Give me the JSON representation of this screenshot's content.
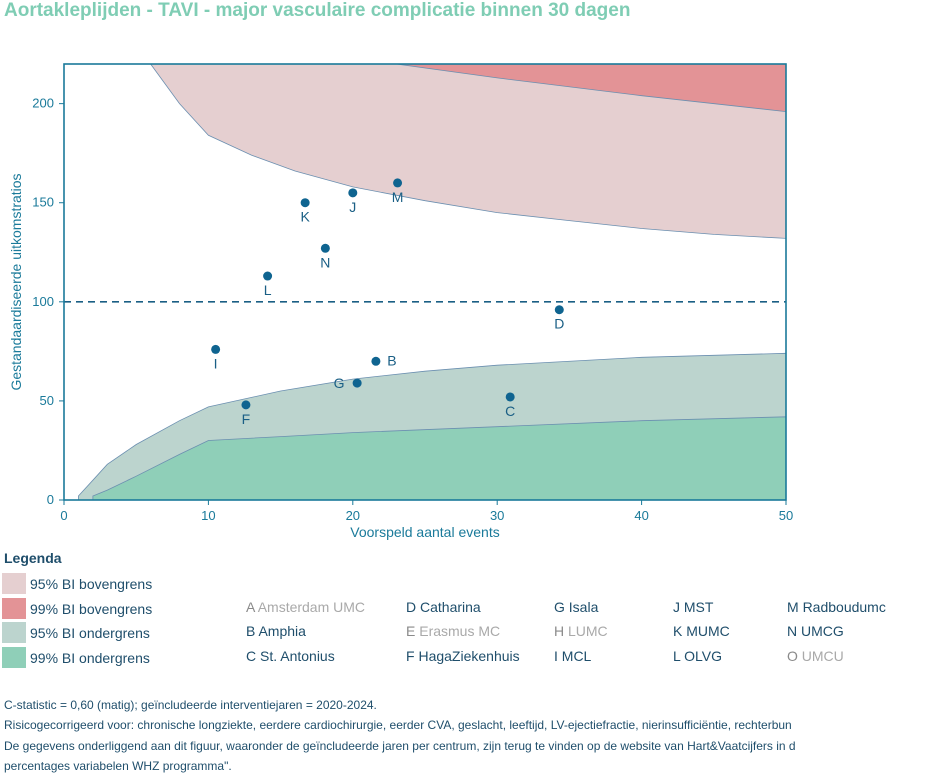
{
  "title": "Aortakleplijden - TAVI - major vasculaire complicatie binnen 30 dagen",
  "chart_data": {
    "type": "scatter",
    "title": "Aortakleplijden - TAVI - major vasculaire complicatie binnen 30 dagen",
    "xlabel": "Voorspeld aantal events",
    "ylabel": "Gestandaardiseerde uitkomstratios",
    "xlim": [
      0,
      50
    ],
    "ylim": [
      0,
      220
    ],
    "x_ticks": [
      0,
      10,
      20,
      30,
      40,
      50
    ],
    "y_ticks": [
      0,
      50,
      100,
      150,
      200
    ],
    "reference_line": 100,
    "grid": false,
    "points": [
      {
        "label": "K",
        "x": 16.7,
        "y": 150
      },
      {
        "label": "J",
        "x": 20.0,
        "y": 155
      },
      {
        "label": "M",
        "x": 23.1,
        "y": 160
      },
      {
        "label": "N",
        "x": 18.1,
        "y": 127
      },
      {
        "label": "L",
        "x": 14.1,
        "y": 113
      },
      {
        "label": "D",
        "x": 34.3,
        "y": 96
      },
      {
        "label": "I",
        "x": 10.5,
        "y": 76
      },
      {
        "label": "B",
        "x": 21.6,
        "y": 70
      },
      {
        "label": "G",
        "x": 20.3,
        "y": 59
      },
      {
        "label": "F",
        "x": 12.6,
        "y": 48
      },
      {
        "label": "C",
        "x": 30.9,
        "y": 52
      }
    ],
    "bands": {
      "upper99": [
        [
          23,
          220
        ],
        [
          30,
          213
        ],
        [
          40,
          204
        ],
        [
          50,
          196
        ]
      ],
      "upper95": [
        [
          6,
          220
        ],
        [
          8,
          200
        ],
        [
          10,
          184
        ],
        [
          13,
          174
        ],
        [
          16,
          166
        ],
        [
          20,
          158
        ],
        [
          25,
          151
        ],
        [
          30,
          145
        ],
        [
          35,
          141
        ],
        [
          40,
          137
        ],
        [
          45,
          134
        ],
        [
          50,
          132
        ]
      ],
      "lower95": [
        [
          1,
          2
        ],
        [
          2,
          10
        ],
        [
          3,
          18
        ],
        [
          5,
          28
        ],
        [
          8,
          40
        ],
        [
          10,
          47
        ],
        [
          15,
          55
        ],
        [
          20,
          61
        ],
        [
          25,
          65
        ],
        [
          30,
          68
        ],
        [
          40,
          72
        ],
        [
          50,
          74
        ]
      ],
      "lower99": [
        [
          2,
          2
        ],
        [
          3,
          5
        ],
        [
          5,
          12
        ],
        [
          8,
          23
        ],
        [
          10,
          30
        ],
        [
          15,
          32
        ],
        [
          20,
          34
        ],
        [
          30,
          37
        ],
        [
          40,
          40
        ],
        [
          50,
          42
        ]
      ]
    },
    "colors": {
      "upper95": "#e5cfd0",
      "upper99": "#e39396",
      "lower95": "#bcd4ce",
      "lower99": "#8fcfb8",
      "points": "#0f6490",
      "axis": "#1a7a9a"
    }
  },
  "legend": {
    "title": "Legenda",
    "bands": [
      {
        "label": "95% BI bovengrens",
        "color": "#e5cfd0"
      },
      {
        "label": "99% BI bovengrens",
        "color": "#e39396"
      },
      {
        "label": "95% BI ondergrens",
        "color": "#bcd4ce"
      },
      {
        "label": "99% BI ondergrens",
        "color": "#8fcfb8"
      }
    ],
    "centers": [
      {
        "code": "A",
        "name": "Amsterdam UMC",
        "excluded": true
      },
      {
        "code": "B",
        "name": "Amphia",
        "excluded": false
      },
      {
        "code": "C",
        "name": "St. Antonius",
        "excluded": false
      },
      {
        "code": "D",
        "name": "Catharina",
        "excluded": false
      },
      {
        "code": "E",
        "name": "Erasmus MC",
        "excluded": true
      },
      {
        "code": "F",
        "name": "HagaZiekenhuis",
        "excluded": false
      },
      {
        "code": "G",
        "name": "Isala",
        "excluded": false
      },
      {
        "code": "H",
        "name": "LUMC",
        "excluded": true
      },
      {
        "code": "I",
        "name": "MCL",
        "excluded": false
      },
      {
        "code": "J",
        "name": "MST",
        "excluded": false
      },
      {
        "code": "K",
        "name": "MUMC",
        "excluded": false
      },
      {
        "code": "L",
        "name": "OLVG",
        "excluded": false
      },
      {
        "code": "M",
        "name": "Radboudumc",
        "excluded": false
      },
      {
        "code": "N",
        "name": "UMCG",
        "excluded": false
      },
      {
        "code": "O",
        "name": "UMCU",
        "excluded": true
      }
    ]
  },
  "notes": [
    "C-statistic =  0,60 (matig); geïncludeerde interventiejaren = 2020-2024.",
    "Risicogecorrigeerd voor: chronische longziekte, eerdere cardiochirurgie, eerder CVA, geslacht, leeftijd, LV-ejectiefractie, nierinsufficiëntie, rechterbun",
    "De gegevens onderliggend aan dit figuur, waaronder de geïncludeerde jaren per centrum, zijn terug te vinden op de website van Hart&Vaatcijfers in d",
    "percentages variabelen WHZ programma\"."
  ]
}
